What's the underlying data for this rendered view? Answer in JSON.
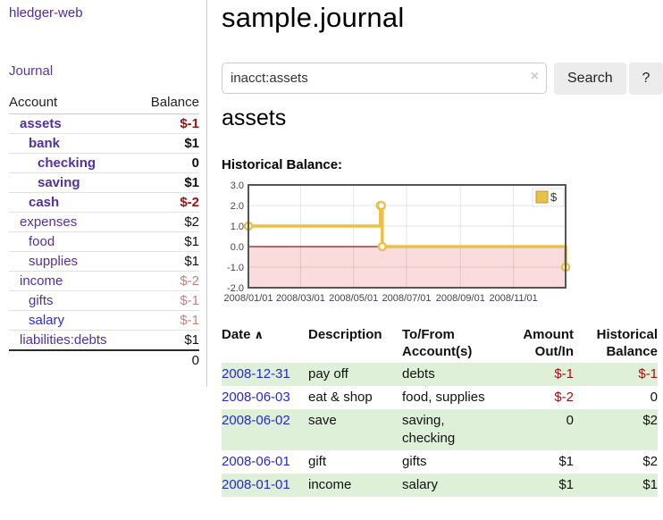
{
  "sidebar": {
    "brand": "hledger-web",
    "journal_link": "Journal",
    "accounts_table": {
      "headers": [
        "Account",
        "Balance"
      ],
      "rows": [
        {
          "name": "assets",
          "indent": 1,
          "bold": true,
          "balance": "$-1",
          "balance_color": "neg"
        },
        {
          "name": "bank",
          "indent": 2,
          "bold": true,
          "balance": "$1",
          "balance_color": "pos"
        },
        {
          "name": "checking",
          "indent": 3,
          "bold": true,
          "balance": "0",
          "balance_color": "pos"
        },
        {
          "name": "saving",
          "indent": 3,
          "bold": true,
          "balance": "$1",
          "balance_color": "pos"
        },
        {
          "name": "cash",
          "indent": 2,
          "bold": true,
          "balance": "$-2",
          "balance_color": "neg"
        },
        {
          "name": "expenses",
          "indent": 1,
          "bold": false,
          "balance": "$2",
          "balance_color": "pos"
        },
        {
          "name": "food",
          "indent": 2,
          "bold": false,
          "balance": "$1",
          "balance_color": "pos"
        },
        {
          "name": "supplies",
          "indent": 2,
          "bold": false,
          "balance": "$1",
          "balance_color": "pos"
        },
        {
          "name": "income",
          "indent": 1,
          "bold": false,
          "balance": "$-2",
          "balance_color": "negdim"
        },
        {
          "name": "gifts",
          "indent": 2,
          "bold": false,
          "balance": "$-1",
          "balance_color": "negdim"
        },
        {
          "name": "salary",
          "indent": 2,
          "bold": false,
          "balance": "$-1",
          "balance_color": "negdim",
          "link_color": "blue"
        },
        {
          "name": "liabilities:debts",
          "indent": 1,
          "bold": false,
          "balance": "$1",
          "balance_color": "pos"
        }
      ],
      "total": "0"
    }
  },
  "header": {
    "title": "sample.journal"
  },
  "search": {
    "value": "inacct:assets",
    "clear_icon": "×",
    "button_label": "Search",
    "help_label": "?"
  },
  "account_page": {
    "heading": "assets",
    "chart_title": "Historical Balance:"
  },
  "chart_data": {
    "type": "line",
    "step": true,
    "title": "Historical Balance:",
    "legend": "$",
    "legend_position": "top-right",
    "x_range": [
      "2008-01-01",
      "2008-12-31"
    ],
    "ylim": [
      -2,
      3
    ],
    "y_ticks": [
      "3.0",
      "2.0",
      "1.0",
      "0.0",
      "-1.0",
      "-2.0"
    ],
    "y_tick_values": [
      3,
      2,
      1,
      0,
      -1,
      -2
    ],
    "x_ticks": [
      {
        "label": "2008/01/01",
        "date": "2008-01-01"
      },
      {
        "label": "2008/03/01",
        "date": "2008-03-01"
      },
      {
        "label": "2008/05/01",
        "date": "2008-05-01"
      },
      {
        "label": "2008/07/01",
        "date": "2008-07-01"
      },
      {
        "label": "2008/09/01",
        "date": "2008-09-01"
      },
      {
        "label": "2008/11/01",
        "date": "2008-11-01"
      }
    ],
    "series": [
      {
        "name": "$",
        "points": [
          {
            "date": "2008-01-01",
            "value": 1
          },
          {
            "date": "2008-06-01",
            "value": 2
          },
          {
            "date": "2008-06-02",
            "value": 2
          },
          {
            "date": "2008-06-03",
            "value": 0
          },
          {
            "date": "2008-12-31",
            "value": -1
          }
        ]
      }
    ],
    "colors": {
      "line": "#e9c04a",
      "marker_fill": "#ffffff",
      "negative_fill": "#fbdcdc",
      "zero_line": "#8b1a1a",
      "grid": "#dddddd",
      "border": "#545454",
      "legend_swatch": "#e9c04a",
      "tick_text": "#444444"
    }
  },
  "register_table": {
    "headers": {
      "date": "Date",
      "sort_asc_icon": "∧",
      "description": "Description",
      "accounts": "To/From Account(s)",
      "amount": "Amount Out/In",
      "balance": "Historical Balance"
    },
    "rows": [
      {
        "date": "2008-12-31",
        "description": "pay off",
        "accounts": "debts",
        "amount": "$-1",
        "amount_neg": true,
        "balance": "$-1",
        "balance_neg": true
      },
      {
        "date": "2008-06-03",
        "description": "eat & shop",
        "accounts": "food, supplies",
        "amount": "$-2",
        "amount_neg": true,
        "balance": "0",
        "balance_neg": false
      },
      {
        "date": "2008-06-02",
        "description": "save",
        "accounts": "saving,\nchecking",
        "amount": "0",
        "amount_neg": false,
        "balance": "$2",
        "balance_neg": false
      },
      {
        "date": "2008-06-01",
        "description": "gift",
        "accounts": "gifts",
        "amount": "$1",
        "amount_neg": false,
        "balance": "$2",
        "balance_neg": false
      },
      {
        "date": "2008-01-01",
        "description": "income",
        "accounts": "salary",
        "amount": "$1",
        "amount_neg": false,
        "balance": "$1",
        "balance_neg": false
      }
    ]
  }
}
